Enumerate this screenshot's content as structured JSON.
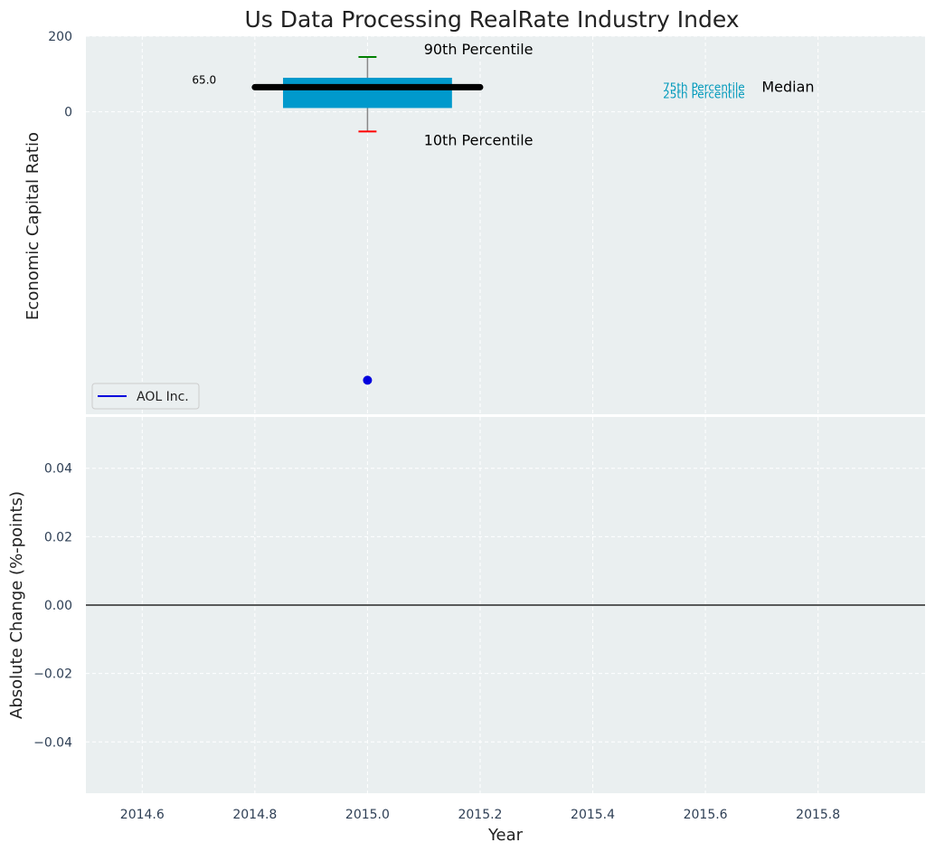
{
  "chart_data": [
    {
      "type": "boxplot",
      "title": "Us Data Processing RealRate Industry Index",
      "ylabel": "Economic Capital Ratio",
      "ylim": [
        -800,
        200
      ],
      "yticks": [
        0,
        200
      ],
      "grid": true,
      "box": {
        "x": 2015.0,
        "p10": -52,
        "p25": 10,
        "median": 65,
        "p75": 90,
        "p90": 145,
        "median_label": "65.0"
      },
      "annotations": {
        "p90": "90th Percentile",
        "p10": "10th Percentile",
        "p75": "75th Percentile",
        "p25": "25th Percentile",
        "median": "Median"
      },
      "series": [
        {
          "name": "AOL Inc.",
          "points": [
            {
              "x": 2015.0,
              "y": -710
            }
          ]
        }
      ],
      "legend": "lower-left",
      "colors": {
        "box": "#0099cc",
        "median": "#000000",
        "whisker_top": "#008000",
        "whisker_bottom": "#ff0000",
        "series": "#0000dd",
        "percentile_text": "#0099bb"
      }
    },
    {
      "type": "line",
      "ylabel": "Absolute Change (%-points)",
      "xlabel": "Year",
      "xlim": [
        2014.5,
        2015.99
      ],
      "ylim": [
        -0.055,
        0.055
      ],
      "xticks": [
        "2014.6",
        "2014.8",
        "2015.0",
        "2015.2",
        "2015.4",
        "2015.6",
        "2015.8"
      ],
      "yticks": [
        "0.04",
        "0.02",
        "0.00",
        "−0.02",
        "−0.04"
      ],
      "reference_line_y": 0,
      "grid": true
    }
  ]
}
